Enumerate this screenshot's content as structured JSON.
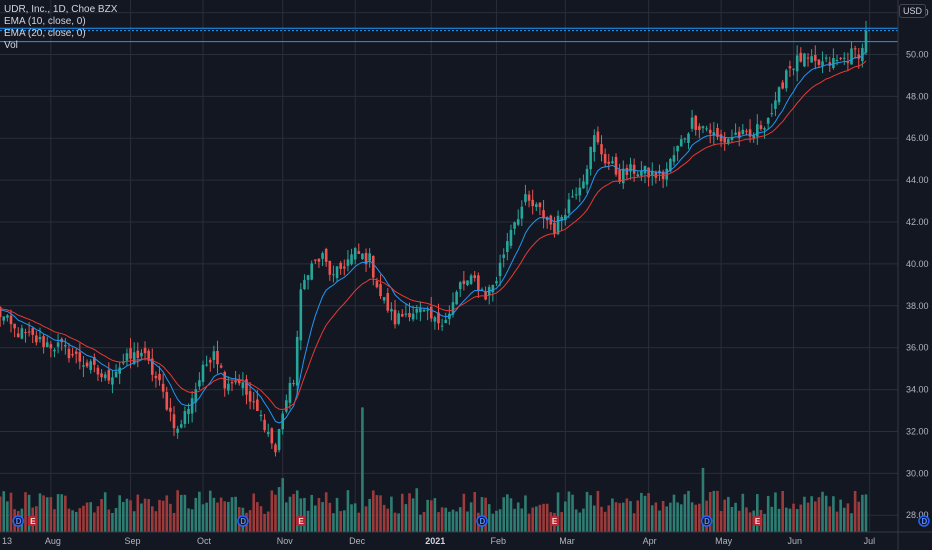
{
  "legend": {
    "symbol": "UDR, Inc., 1D, Choe BZX",
    "ema10": "EMA (10, close, 0)",
    "ema20": "EMA (20, close, 0)",
    "vol": "Vol"
  },
  "currency": "USD",
  "colors": {
    "background": "#131722",
    "grid": "#2a2e39",
    "up": "#26a69a",
    "down": "#ef5350",
    "vol_up": "#2e7d73",
    "vol_down": "#9c3b3b",
    "ema10": "#2196f3",
    "ema20": "#e53935",
    "hline": "#2196f3",
    "event_dividend": "#2962ff",
    "event_earnings": "#b22833"
  },
  "chart_data": {
    "type": "candlestick",
    "title": "UDR, Inc., 1D, Choe BZX",
    "ylim": [
      27.2,
      52.6
    ],
    "y_ticks": [
      "28.00",
      "30.00",
      "32.00",
      "34.00",
      "36.00",
      "38.00",
      "40.00",
      "42.00",
      "44.00",
      "46.00",
      "48.00",
      "50.00",
      "52.00"
    ],
    "x_ticks": [
      {
        "label": "13",
        "day": 0
      },
      {
        "label": "Aug",
        "day": 15
      },
      {
        "label": "Sep",
        "day": 37
      },
      {
        "label": "Oct",
        "day": 57
      },
      {
        "label": "Nov",
        "day": 79
      },
      {
        "label": "Dec",
        "day": 99
      },
      {
        "label": "2021",
        "day": 120,
        "bold": true
      },
      {
        "label": "Feb",
        "day": 138
      },
      {
        "label": "Mar",
        "day": 157
      },
      {
        "label": "Apr",
        "day": 180
      },
      {
        "label": "May",
        "day": 200
      },
      {
        "label": "Jun",
        "day": 220
      },
      {
        "label": "Jul",
        "day": 241
      }
    ],
    "price_labels": [
      "51.25",
      "51.14",
      "50.61"
    ],
    "price_levels": [
      51.25,
      51.14,
      50.61
    ],
    "anchors": [
      [
        0,
        37.8
      ],
      [
        5,
        36.8
      ],
      [
        12,
        36.3
      ],
      [
        18,
        36.0
      ],
      [
        25,
        35.2
      ],
      [
        30,
        34.5
      ],
      [
        35,
        35.3
      ],
      [
        40,
        35.8
      ],
      [
        45,
        34.2
      ],
      [
        50,
        32.0
      ],
      [
        56,
        34.5
      ],
      [
        60,
        36.0
      ],
      [
        63,
        34.4
      ],
      [
        67,
        34.5
      ],
      [
        70,
        33.4
      ],
      [
        74,
        32.4
      ],
      [
        77,
        31.0
      ],
      [
        79,
        33.0
      ],
      [
        82,
        34.5
      ],
      [
        84,
        38.5
      ],
      [
        86,
        39.8
      ],
      [
        90,
        40.3
      ],
      [
        93,
        39.3
      ],
      [
        96,
        40.0
      ],
      [
        99,
        40.5
      ],
      [
        103,
        40.2
      ],
      [
        106,
        38.5
      ],
      [
        110,
        37.3
      ],
      [
        114,
        37.8
      ],
      [
        118,
        37.6
      ],
      [
        121,
        37.2
      ],
      [
        125,
        37.6
      ],
      [
        128,
        39.0
      ],
      [
        132,
        39.2
      ],
      [
        135,
        38.5
      ],
      [
        138,
        39.3
      ],
      [
        142,
        41.8
      ],
      [
        146,
        43.0
      ],
      [
        150,
        42.5
      ],
      [
        154,
        41.7
      ],
      [
        158,
        43.0
      ],
      [
        162,
        44.2
      ],
      [
        165,
        46.0
      ],
      [
        168,
        45.0
      ],
      [
        172,
        44.2
      ],
      [
        176,
        44.5
      ],
      [
        180,
        44.3
      ],
      [
        184,
        44.2
      ],
      [
        188,
        45.5
      ],
      [
        192,
        46.8
      ],
      [
        196,
        46.5
      ],
      [
        200,
        45.8
      ],
      [
        204,
        46.2
      ],
      [
        208,
        46.0
      ],
      [
        212,
        46.8
      ],
      [
        215,
        47.5
      ],
      [
        218,
        49.3
      ],
      [
        222,
        49.8
      ],
      [
        226,
        49.5
      ],
      [
        230,
        49.6
      ],
      [
        233,
        49.7
      ],
      [
        236,
        50.0
      ],
      [
        239,
        50.2
      ],
      [
        240,
        51.1
      ]
    ],
    "volume_spikes": {
      "78": 1.4,
      "79": 1.3,
      "80": 0.8,
      "101": 3.1,
      "102": 0.9,
      "116": 1.8,
      "117": 0.8,
      "195": 1.7,
      "196": 1.0,
      "218": 0.9,
      "226": 0.9
    },
    "events": [
      {
        "type": "dividend",
        "label": "D",
        "day": 6
      },
      {
        "type": "earnings",
        "label": "E",
        "day": 10
      },
      {
        "type": "dividend",
        "label": "D",
        "day": 68
      },
      {
        "type": "earnings",
        "label": "E",
        "day": 84
      },
      {
        "type": "dividend",
        "label": "D",
        "day": 134
      },
      {
        "type": "earnings",
        "label": "E",
        "day": 154
      },
      {
        "type": "dividend",
        "label": "D",
        "day": 196
      },
      {
        "type": "earnings",
        "label": "E",
        "day": 210
      },
      {
        "type": "dividend",
        "label": "D",
        "day": 256
      }
    ]
  }
}
